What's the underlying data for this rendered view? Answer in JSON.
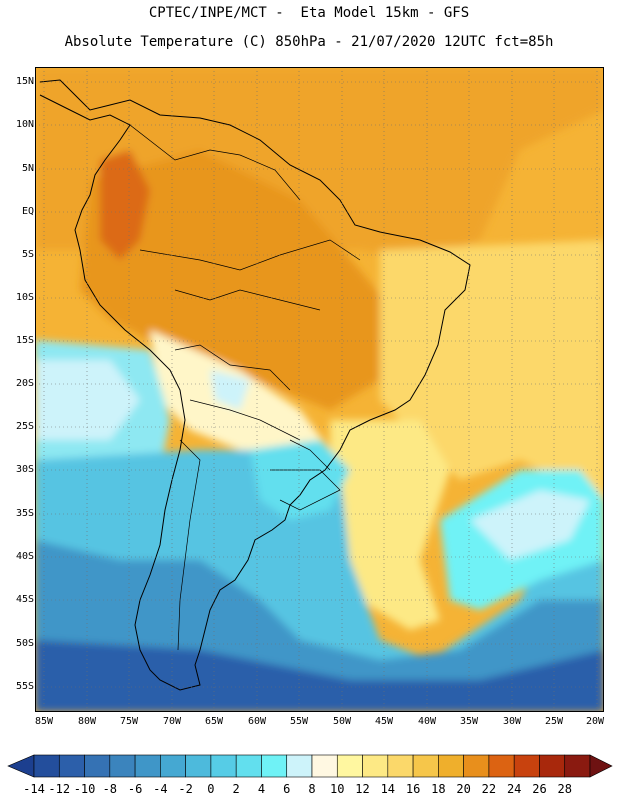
{
  "title": {
    "line1": "CPTEC/INPE/MCT -  Eta Model 15km - GFS",
    "line2": "Absolute Temperature (C) 850hPa - 21/07/2020 12UTC fct=85h"
  },
  "map": {
    "region": "South America",
    "lat_labels": [
      "15N",
      "10N",
      "5N",
      "EQ",
      "5S",
      "10S",
      "15S",
      "20S",
      "25S",
      "30S",
      "35S",
      "40S",
      "45S",
      "50S",
      "55S"
    ],
    "lon_labels": [
      "85W",
      "80W",
      "75W",
      "70W",
      "65W",
      "60W",
      "55W",
      "50W",
      "45W",
      "40W",
      "35W",
      "30W",
      "25W",
      "20W"
    ]
  },
  "colorbar": {
    "labels": [
      "-14",
      "-12",
      "-10",
      "-8",
      "-6",
      "-4",
      "-2",
      "0",
      "2",
      "4",
      "6",
      "8",
      "10",
      "12",
      "14",
      "16",
      "18",
      "20",
      "22",
      "24",
      "26",
      "28"
    ],
    "colors": [
      "#1c3f8f",
      "#234e9c",
      "#2c5faa",
      "#3572b4",
      "#3b84bd",
      "#3f96c8",
      "#45a8d2",
      "#4dbadc",
      "#56cce6",
      "#62dfee",
      "#6ff2f6",
      "#cdf3fa",
      "#fff8e2",
      "#fff7a0",
      "#fde985",
      "#fbd86a",
      "#f6c64a",
      "#efaf2c",
      "#e88f1c",
      "#dc6312",
      "#c8420e",
      "#a8280c",
      "#8a1a10",
      "#6e1212"
    ],
    "unit": "C"
  }
}
